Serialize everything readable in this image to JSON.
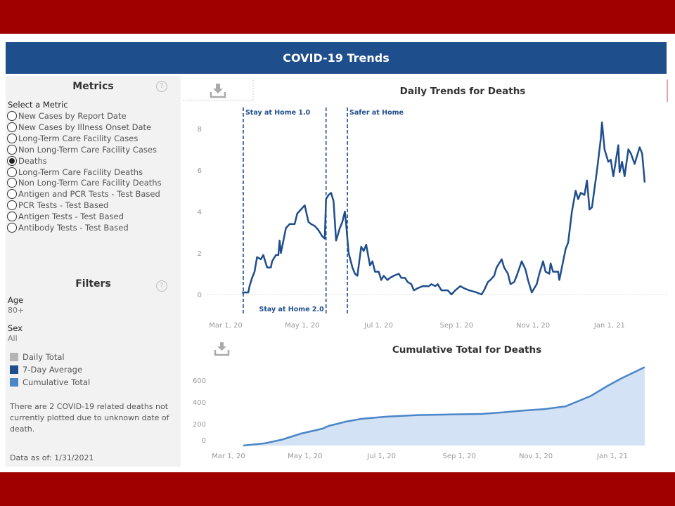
{
  "header": {
    "title": "COVID-19 Trends"
  },
  "metrics": {
    "title": "Metrics",
    "help_icon": "question-circle-icon",
    "select_label": "Select a Metric",
    "selected": "Deaths",
    "options": [
      "New Cases by Report Date",
      "New Cases by Illness Onset Date",
      "Long-Term Care Facility Cases",
      "Non Long-Term Care Facility Cases",
      "Deaths",
      "Long-Term Care Facility Deaths",
      "Non Long-Term Care Facility Deaths",
      "Antigen and PCR Tests - Test Based",
      "PCR Tests - Test Based",
      "Antigen Tests - Test Based",
      "Antibody Tests - Test Based"
    ]
  },
  "filters": {
    "title": "Filters",
    "age_label": "Age",
    "age_value": "80+",
    "sex_label": "Sex",
    "sex_value": "All"
  },
  "legend": [
    {
      "label": "Daily Total",
      "color": "#b5b5b5"
    },
    {
      "label": "7-Day Average",
      "color": "#1f4e8c"
    },
    {
      "label": "Cumulative Total",
      "color": "#4a86c8"
    }
  ],
  "note": "There are 2 COVID-19 related deaths not currently plotted due to unknown date of death.",
  "data_as_of": "Data as of: 1/31/2021",
  "colors": {
    "brand_red": "#a00000",
    "header_blue": "#1f4e8c",
    "line": "#1f4e8c",
    "area_line": "#4a86c8",
    "area_fill": "#d3e2f4"
  },
  "chart_data": [
    {
      "type": "line",
      "title": "Daily Trends for Deaths",
      "download_icon": "download-icon",
      "series_name": "7-Day Average",
      "ylim": [
        0,
        9
      ],
      "yticks": [
        0,
        2,
        4,
        6,
        8
      ],
      "xticks": [
        "Mar 1, 20",
        "May 1, 20",
        "Jul 1, 20",
        "Sep 1, 20",
        "Nov 1, 20",
        "Jan 1, 21"
      ],
      "xtick_dates": [
        "2020-03-01",
        "2020-05-01",
        "2020-07-01",
        "2020-09-01",
        "2020-11-01",
        "2021-01-01"
      ],
      "annotations": [
        {
          "label": "Stay at Home 1.0",
          "date": "2020-03-15",
          "label_position": "top"
        },
        {
          "label": "Stay at Home 2.0",
          "date": "2020-05-20",
          "label_position": "bottom"
        },
        {
          "label": "Safer at Home",
          "date": "2020-06-06",
          "label_position": "top"
        }
      ],
      "points": [
        [
          "2020-03-14",
          0.1
        ],
        [
          "2020-03-19",
          0.1
        ],
        [
          "2020-03-20",
          0.4
        ],
        [
          "2020-03-22",
          0.8
        ],
        [
          "2020-03-24",
          1.1
        ],
        [
          "2020-03-26",
          1.8
        ],
        [
          "2020-03-29",
          1.7
        ],
        [
          "2020-03-31",
          1.9
        ],
        [
          "2020-04-03",
          1.3
        ],
        [
          "2020-04-06",
          1.3
        ],
        [
          "2020-04-07",
          1.6
        ],
        [
          "2020-04-10",
          1.9
        ],
        [
          "2020-04-12",
          1.9
        ],
        [
          "2020-04-13",
          2.6
        ],
        [
          "2020-04-14",
          2.0
        ],
        [
          "2020-04-16",
          2.6
        ],
        [
          "2020-04-18",
          3.2
        ],
        [
          "2020-04-21",
          3.4
        ],
        [
          "2020-04-25",
          3.4
        ],
        [
          "2020-04-27",
          3.9
        ],
        [
          "2020-04-30",
          4.1
        ],
        [
          "2020-05-03",
          4.3
        ],
        [
          "2020-05-06",
          3.5
        ],
        [
          "2020-05-08",
          3.4
        ],
        [
          "2020-05-11",
          3.3
        ],
        [
          "2020-05-14",
          3.1
        ],
        [
          "2020-05-17",
          2.8
        ],
        [
          "2020-05-19",
          2.7
        ],
        [
          "2020-05-20",
          4.6
        ],
        [
          "2020-05-22",
          4.8
        ],
        [
          "2020-05-24",
          4.9
        ],
        [
          "2020-05-26",
          4.5
        ],
        [
          "2020-05-28",
          2.6
        ],
        [
          "2020-05-31",
          3.2
        ],
        [
          "2020-06-02",
          3.5
        ],
        [
          "2020-06-04",
          4.0
        ],
        [
          "2020-06-05",
          3.4
        ],
        [
          "2020-06-07",
          2.0
        ],
        [
          "2020-06-10",
          1.3
        ],
        [
          "2020-06-12",
          1.0
        ],
        [
          "2020-06-14",
          0.9
        ],
        [
          "2020-06-17",
          2.3
        ],
        [
          "2020-06-19",
          2.1
        ],
        [
          "2020-06-21",
          2.4
        ],
        [
          "2020-06-24",
          1.4
        ],
        [
          "2020-06-26",
          1.6
        ],
        [
          "2020-06-28",
          1.1
        ],
        [
          "2020-07-01",
          1.1
        ],
        [
          "2020-07-03",
          0.7
        ],
        [
          "2020-07-05",
          0.9
        ],
        [
          "2020-07-08",
          0.7
        ],
        [
          "2020-07-10",
          0.8
        ],
        [
          "2020-07-13",
          0.9
        ],
        [
          "2020-07-17",
          1.0
        ],
        [
          "2020-07-19",
          0.8
        ],
        [
          "2020-07-22",
          0.8
        ],
        [
          "2020-07-24",
          0.6
        ],
        [
          "2020-07-27",
          0.5
        ],
        [
          "2020-07-29",
          0.2
        ],
        [
          "2020-08-01",
          0.3
        ],
        [
          "2020-08-05",
          0.4
        ],
        [
          "2020-08-10",
          0.4
        ],
        [
          "2020-08-12",
          0.5
        ],
        [
          "2020-08-15",
          0.4
        ],
        [
          "2020-08-17",
          0.5
        ],
        [
          "2020-08-20",
          0.2
        ],
        [
          "2020-08-25",
          0.2
        ],
        [
          "2020-08-28",
          0.0
        ],
        [
          "2020-08-31",
          0.2
        ],
        [
          "2020-09-04",
          0.4
        ],
        [
          "2020-09-07",
          0.3
        ],
        [
          "2020-09-11",
          0.2
        ],
        [
          "2020-09-17",
          0.1
        ],
        [
          "2020-09-21",
          0.0
        ],
        [
          "2020-09-23",
          0.2
        ],
        [
          "2020-09-26",
          0.6
        ],
        [
          "2020-09-28",
          0.7
        ],
        [
          "2020-10-01",
          0.9
        ],
        [
          "2020-10-03",
          1.3
        ],
        [
          "2020-10-07",
          1.7
        ],
        [
          "2020-10-09",
          1.3
        ],
        [
          "2020-10-12",
          1.0
        ],
        [
          "2020-10-14",
          0.5
        ],
        [
          "2020-10-17",
          0.6
        ],
        [
          "2020-10-19",
          0.9
        ],
        [
          "2020-10-23",
          1.6
        ],
        [
          "2020-10-26",
          1.2
        ],
        [
          "2020-10-28",
          0.7
        ],
        [
          "2020-10-31",
          0.1
        ],
        [
          "2020-11-04",
          0.5
        ],
        [
          "2020-11-06",
          1.0
        ],
        [
          "2020-11-09",
          1.6
        ],
        [
          "2020-11-11",
          1.1
        ],
        [
          "2020-11-14",
          1.0
        ],
        [
          "2020-11-15",
          1.5
        ],
        [
          "2020-11-17",
          1.1
        ],
        [
          "2020-11-21",
          1.1
        ],
        [
          "2020-11-22",
          0.7
        ],
        [
          "2020-11-25",
          1.6
        ],
        [
          "2020-11-27",
          2.2
        ],
        [
          "2020-11-29",
          2.5
        ],
        [
          "2020-12-02",
          4.0
        ],
        [
          "2020-12-05",
          5.0
        ],
        [
          "2020-12-07",
          4.6
        ],
        [
          "2020-12-09",
          4.9
        ],
        [
          "2020-12-12",
          4.8
        ],
        [
          "2020-12-14",
          5.5
        ],
        [
          "2020-12-16",
          4.1
        ],
        [
          "2020-12-18",
          4.2
        ],
        [
          "2020-12-22",
          6.0
        ],
        [
          "2020-12-25",
          7.5
        ],
        [
          "2020-12-26",
          8.3
        ],
        [
          "2020-12-28",
          7.0
        ],
        [
          "2020-12-31",
          6.4
        ],
        [
          "2021-01-02",
          6.5
        ],
        [
          "2021-01-04",
          5.7
        ],
        [
          "2021-01-08",
          7.2
        ],
        [
          "2021-01-09",
          5.9
        ],
        [
          "2021-01-11",
          6.4
        ],
        [
          "2021-01-13",
          5.7
        ],
        [
          "2021-01-16",
          7.0
        ],
        [
          "2021-01-18",
          6.8
        ],
        [
          "2021-01-21",
          6.3
        ],
        [
          "2021-01-25",
          7.1
        ],
        [
          "2021-01-27",
          6.8
        ],
        [
          "2021-01-29",
          5.4
        ]
      ]
    },
    {
      "type": "area",
      "title": "Cumulative Total for Deaths",
      "download_icon": "download-icon",
      "series_name": "Cumulative Total",
      "ylim": [
        0,
        750
      ],
      "yticks": [
        0,
        200,
        400,
        600
      ],
      "xticks": [
        "Mar 1, 20",
        "May 1, 20",
        "Jul 1, 20",
        "Sep 1, 20",
        "Nov 1, 20",
        "Jan 1, 21"
      ],
      "xtick_dates": [
        "2020-03-01",
        "2020-05-01",
        "2020-07-01",
        "2020-09-01",
        "2020-11-01",
        "2021-01-01"
      ],
      "points": [
        [
          "2020-03-15",
          0
        ],
        [
          "2020-04-01",
          20
        ],
        [
          "2020-04-15",
          55
        ],
        [
          "2020-04-30",
          110
        ],
        [
          "2020-05-17",
          155
        ],
        [
          "2020-05-22",
          180
        ],
        [
          "2020-06-05",
          220
        ],
        [
          "2020-06-17",
          245
        ],
        [
          "2020-07-07",
          265
        ],
        [
          "2020-08-01",
          280
        ],
        [
          "2020-08-26",
          285
        ],
        [
          "2020-09-21",
          290
        ],
        [
          "2020-10-08",
          305
        ],
        [
          "2020-10-23",
          320
        ],
        [
          "2020-11-10",
          335
        ],
        [
          "2020-11-27",
          360
        ],
        [
          "2020-12-17",
          455
        ],
        [
          "2020-12-30",
          545
        ],
        [
          "2021-01-11",
          620
        ],
        [
          "2021-01-29",
          720
        ]
      ]
    }
  ]
}
